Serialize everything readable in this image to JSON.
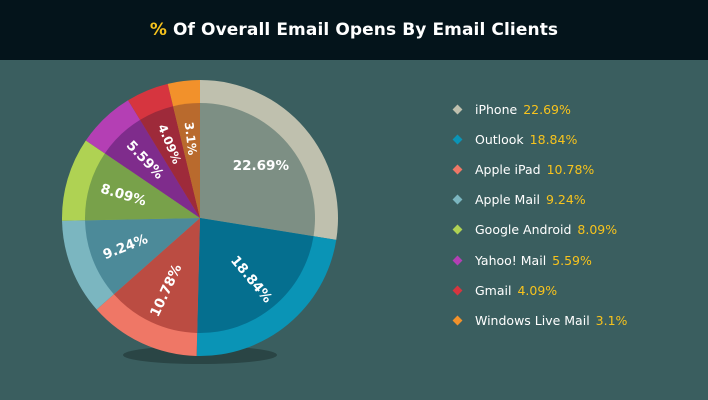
{
  "header": {
    "title_pct": "%",
    "title_text": " Of Overall Email Opens By Email Clients"
  },
  "chart_data": {
    "type": "pie",
    "title": "% Of Overall Email Opens By Email Clients",
    "legend_position": "right",
    "slices": [
      {
        "label": "iPhone",
        "value": 22.69,
        "display": "22.69%",
        "legend_value": "22.69%",
        "color": "#bfc0ae",
        "inner": "#7d8f84"
      },
      {
        "label": "Outlook",
        "value": 18.84,
        "display": "18.84%",
        "legend_value": "18.84%",
        "color": "#0a94b6",
        "inner": "#056f8f"
      },
      {
        "label": "Apple iPad",
        "value": 10.78,
        "display": "10.78%",
        "legend_value": "10.78%",
        "color": "#ef7766",
        "inner": "#bb4c42"
      },
      {
        "label": "Apple Mail",
        "value": 9.24,
        "display": "9.24%",
        "legend_value": "9.24%",
        "color": "#7bb6c0",
        "inner": "#4c8a99"
      },
      {
        "label": "Google Android",
        "value": 8.09,
        "display": "8.09%",
        "legend_value": "8.09%",
        "color": "#afd253",
        "inner": "#78a14a"
      },
      {
        "label": "Yahoo! Mail",
        "value": 5.59,
        "display": "5.59%",
        "legend_value": "5.59%",
        "color": "#b43fb4",
        "inner": "#7f2c8c"
      },
      {
        "label": "Gmail",
        "value": 4.09,
        "display": "4.09%",
        "legend_value": "4.09%",
        "color": "#d6353f",
        "inner": "#9e2a3a"
      },
      {
        "label": "Windows Live Mail",
        "value": 3.1,
        "display": "3.1%",
        "legend_value": "3.1%",
        "color": "#f2912b",
        "inner": "#b96a2d"
      }
    ]
  }
}
